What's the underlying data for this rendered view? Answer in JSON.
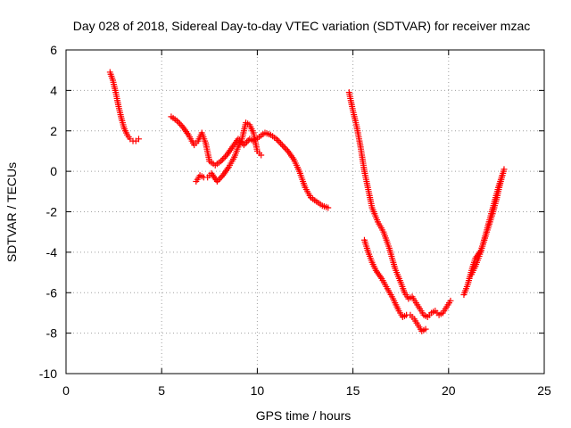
{
  "chart_data": {
    "type": "scatter",
    "title": "Day 028 of 2018, Sidereal Day-to-day VTEC variation (SDTVAR) for receiver mzac",
    "xlabel": "GPS time / hours",
    "ylabel": "SDTVAR / TECUs",
    "xlim": [
      0,
      25
    ],
    "ylim": [
      -10,
      6
    ],
    "xticks": [
      "0",
      "5",
      "10",
      "15",
      "20",
      "25"
    ],
    "yticks": [
      "-10",
      "-8",
      "-6",
      "-4",
      "-2",
      "0",
      "2",
      "4",
      "6"
    ],
    "grid": true,
    "marker": "+",
    "color": "#ff0000",
    "series": [
      {
        "x": [
          2.3,
          2.45,
          2.6,
          2.75,
          2.9,
          3.05,
          3.2,
          3.35,
          3.5,
          3.65,
          3.8
        ],
        "y": [
          4.9,
          4.5,
          3.9,
          3.2,
          2.6,
          2.1,
          1.8,
          1.6,
          1.5,
          1.5,
          1.6
        ]
      },
      {
        "x": [
          5.5,
          5.8,
          6.1,
          6.4,
          6.7,
          6.9,
          7.1,
          7.3,
          7.5,
          7.8,
          8.1,
          8.4,
          8.7,
          9.0,
          9.3,
          9.6,
          9.8,
          10.1,
          10.4,
          10.7,
          11.0,
          11.3,
          11.6,
          11.9,
          12.2,
          12.5,
          12.8,
          13.1,
          13.4,
          13.7
        ],
        "y": [
          2.7,
          2.5,
          2.2,
          1.8,
          1.3,
          1.5,
          1.9,
          1.4,
          0.5,
          0.3,
          0.5,
          0.8,
          1.2,
          1.6,
          1.3,
          1.6,
          1.5,
          1.7,
          1.9,
          1.8,
          1.6,
          1.3,
          1.0,
          0.6,
          0.0,
          -0.8,
          -1.3,
          -1.5,
          -1.7,
          -1.8
        ]
      },
      {
        "x": [
          6.8,
          7.0,
          7.2,
          7.4,
          7.6,
          7.9,
          8.2,
          8.5,
          8.8,
          9.0,
          9.2,
          9.4,
          9.6,
          9.8,
          10.0,
          10.2
        ],
        "y": [
          -0.5,
          -0.2,
          -0.3,
          -0.3,
          -0.1,
          -0.5,
          -0.2,
          0.2,
          0.7,
          1.2,
          1.6,
          2.4,
          2.3,
          1.9,
          1.0,
          0.8
        ]
      },
      {
        "x": [
          14.8,
          15.0,
          15.2,
          15.4,
          15.6,
          15.8,
          16.0,
          16.3,
          16.6,
          16.9,
          17.2,
          17.5,
          17.7,
          17.9,
          18.1,
          18.3,
          18.5,
          18.7,
          18.9,
          19.1,
          19.3,
          19.5,
          19.7,
          19.9,
          20.1
        ],
        "y": [
          3.9,
          3.0,
          2.2,
          1.2,
          0.0,
          -0.9,
          -1.8,
          -2.5,
          -3.0,
          -3.8,
          -4.8,
          -5.5,
          -6.0,
          -6.3,
          -6.2,
          -6.5,
          -6.8,
          -7.1,
          -7.2,
          -7.0,
          -6.9,
          -7.1,
          -7.0,
          -6.7,
          -6.4
        ]
      },
      {
        "x": [
          15.6,
          15.8,
          16.0,
          16.2,
          16.5,
          16.8,
          17.1,
          17.4,
          17.6,
          17.8,
          18.0,
          18.2,
          18.4,
          18.6,
          18.8
        ],
        "y": [
          -3.4,
          -4.0,
          -4.5,
          -4.9,
          -5.3,
          -5.8,
          -6.3,
          -6.9,
          -7.2,
          -7.1,
          -7.1,
          -7.3,
          -7.6,
          -7.9,
          -7.8
        ]
      },
      {
        "x": [
          20.8,
          21.0,
          21.2,
          21.4,
          21.7,
          21.9,
          22.1,
          22.3,
          22.5,
          22.7,
          22.9
        ],
        "y": [
          -6.1,
          -5.6,
          -4.9,
          -4.3,
          -3.9,
          -3.3,
          -2.7,
          -2.1,
          -1.4,
          -0.6,
          0.1
        ]
      },
      {
        "x": [
          21.2,
          21.4,
          21.6,
          21.8,
          22.0,
          22.2,
          22.4,
          22.6,
          22.8
        ],
        "y": [
          -5.1,
          -4.7,
          -4.2,
          -3.6,
          -2.9,
          -2.2,
          -1.5,
          -0.8,
          -0.2
        ]
      }
    ]
  }
}
